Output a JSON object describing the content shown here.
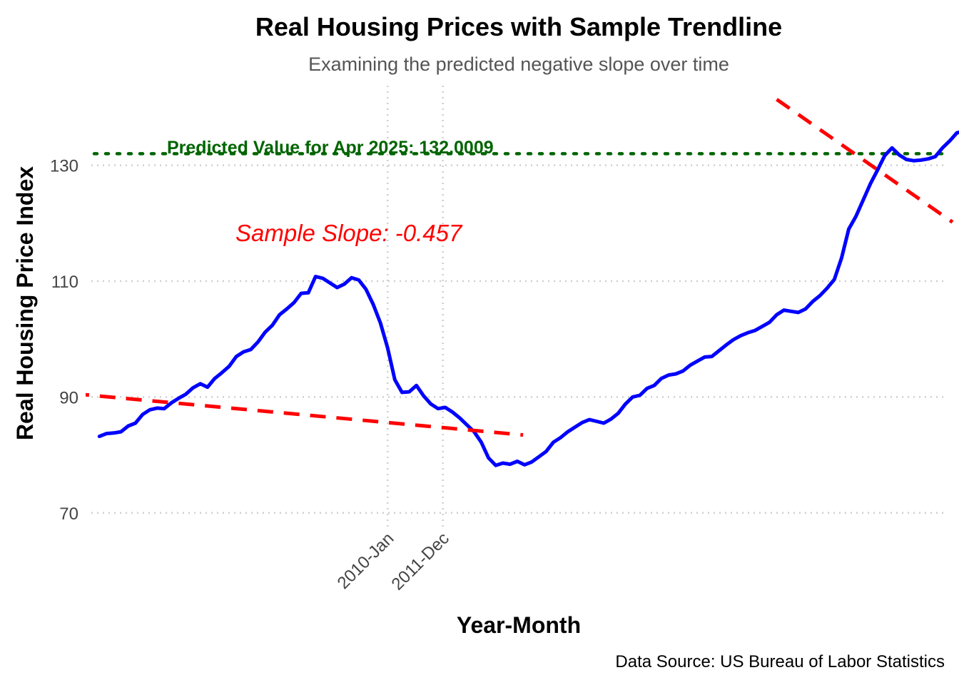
{
  "chart_data": {
    "type": "line",
    "title": "Real Housing Prices with Sample Trendline",
    "subtitle": "Examining the predicted negative slope over time",
    "xlabel": "Year-Month",
    "ylabel": "Real Housing Price Index",
    "caption": "Data Source: US Bureau of Labor Statistics",
    "x_ticks": [
      {
        "label": "2010-Jan",
        "t": 0.0
      },
      {
        "label": "2011-Dec",
        "t": 1.9167
      }
    ],
    "y_ticks": [
      70,
      90,
      110,
      130
    ],
    "ylim": [
      60,
      144
    ],
    "xlim_years_from_2010": [
      -10.28,
      19.33
    ],
    "grid": true,
    "legend": "none",
    "series": [
      {
        "color": "#0000ff",
        "x_start": "2000-Jan",
        "x_end": "2025-Apr",
        "x_step": "quarterly",
        "values": [
          83.2,
          83.7,
          83.8,
          84.0,
          85.0,
          85.5,
          87.0,
          87.8,
          88.1,
          88.0,
          89.0,
          89.8,
          90.5,
          91.6,
          92.3,
          91.7,
          93.2,
          94.2,
          95.3,
          97.0,
          97.8,
          98.2,
          99.5,
          101.2,
          102.4,
          104.2,
          105.2,
          106.3,
          107.9,
          108.0,
          110.8,
          110.5,
          109.7,
          108.9,
          109.5,
          110.6,
          110.2,
          108.6,
          106.0,
          102.8,
          98.5,
          93.0,
          90.8,
          90.9,
          92.0,
          90.2,
          88.8,
          88.0,
          88.2,
          87.4,
          86.4,
          85.2,
          84.0,
          82.2,
          79.5,
          78.2,
          78.6,
          78.4,
          78.9,
          78.3,
          78.8,
          79.7,
          80.6,
          82.2,
          83.0,
          84.0,
          84.8,
          85.6,
          86.1,
          85.8,
          85.5,
          86.2,
          87.2,
          88.8,
          90.0,
          90.3,
          91.5,
          92.0,
          93.2,
          93.8,
          94.0,
          94.5,
          95.5,
          96.2,
          96.9,
          97.0,
          98.0,
          99.0,
          99.9,
          100.6,
          101.1,
          101.5,
          102.2,
          102.9,
          104.2,
          105.0,
          104.8,
          104.6,
          105.2,
          106.5,
          107.5,
          108.8,
          110.3,
          114.0,
          119.0,
          121.2,
          124.0,
          126.8,
          129.2,
          131.7,
          133.0,
          131.8,
          131.0,
          130.8,
          130.9,
          131.1,
          131.5,
          133.0,
          134.2,
          135.6,
          135.9,
          135.2,
          135.3
        ]
      }
    ],
    "trendline": {
      "color": "#ff0000",
      "style": "dashed",
      "slope": -0.457,
      "intercept_at_2010": 85.6,
      "label": "Sample Slope: -0.457"
    },
    "prediction": {
      "color": "#006400",
      "style": "dotted",
      "value": 132.0009,
      "label": "Predicted Value for Apr 2025: 132.0009"
    }
  }
}
